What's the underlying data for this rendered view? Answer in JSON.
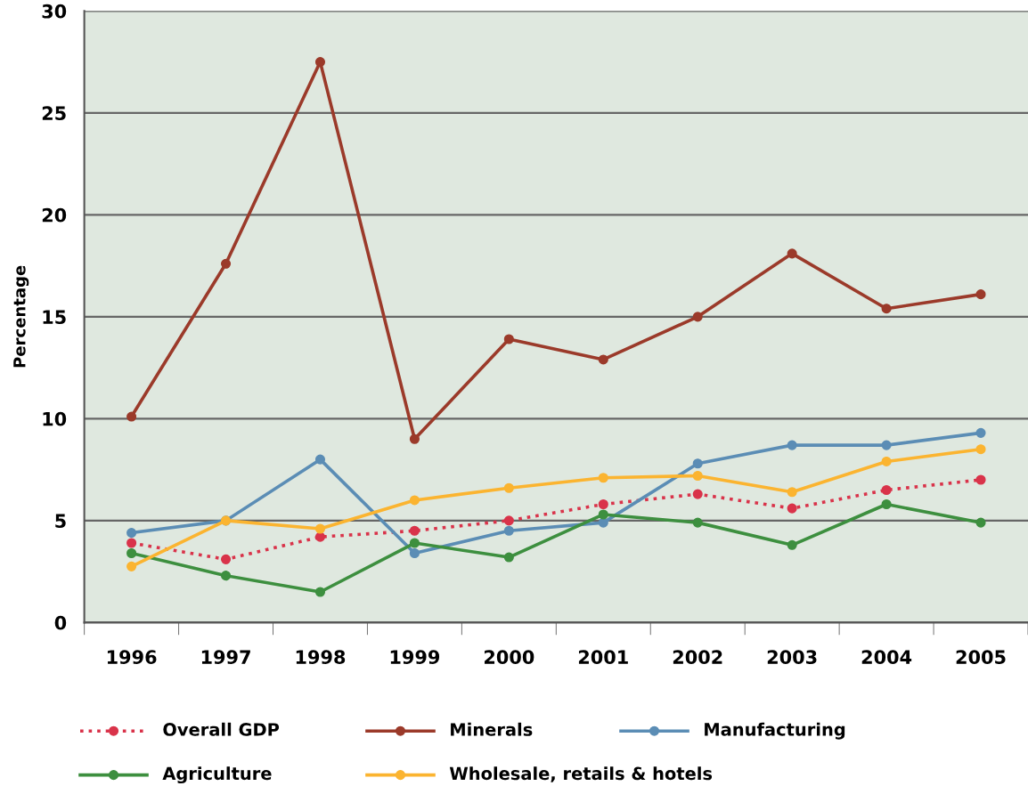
{
  "chart_data": {
    "type": "line",
    "ylabel": "Percentage",
    "categories": [
      "1996",
      "1997",
      "1998",
      "1999",
      "2000",
      "2001",
      "2002",
      "2003",
      "2004",
      "2005"
    ],
    "ylim": [
      0,
      30
    ],
    "yticks": [
      0,
      5,
      10,
      15,
      20,
      25,
      30
    ],
    "grid": "y",
    "legend": "bottom",
    "marker": "circle",
    "series": [
      {
        "name": "Overall GDP",
        "color": "#d9334a",
        "line_style": "dotted",
        "values": [
          3.9,
          3.1,
          4.2,
          4.5,
          5.0,
          5.8,
          6.3,
          5.6,
          6.5,
          7.0
        ]
      },
      {
        "name": "Minerals",
        "color": "#9b3a2a",
        "values": [
          10.1,
          17.6,
          27.5,
          9.0,
          13.9,
          12.9,
          15.0,
          18.1,
          15.4,
          16.1
        ]
      },
      {
        "name": "Manufacturing",
        "color": "#5b8db5",
        "values": [
          4.4,
          5.0,
          8.0,
          3.4,
          4.5,
          4.9,
          7.8,
          8.7,
          8.7,
          9.3
        ]
      },
      {
        "name": "Agriculture",
        "color": "#3d8f3f",
        "values": [
          3.4,
          2.3,
          1.5,
          3.9,
          3.2,
          5.3,
          4.9,
          3.8,
          5.8,
          4.9
        ]
      },
      {
        "name": "Wholesale, retails & hotels",
        "color": "#fbb430",
        "values": [
          2.75,
          5.0,
          4.6,
          6.0,
          6.6,
          7.1,
          7.2,
          6.4,
          7.9,
          8.5
        ]
      }
    ]
  }
}
